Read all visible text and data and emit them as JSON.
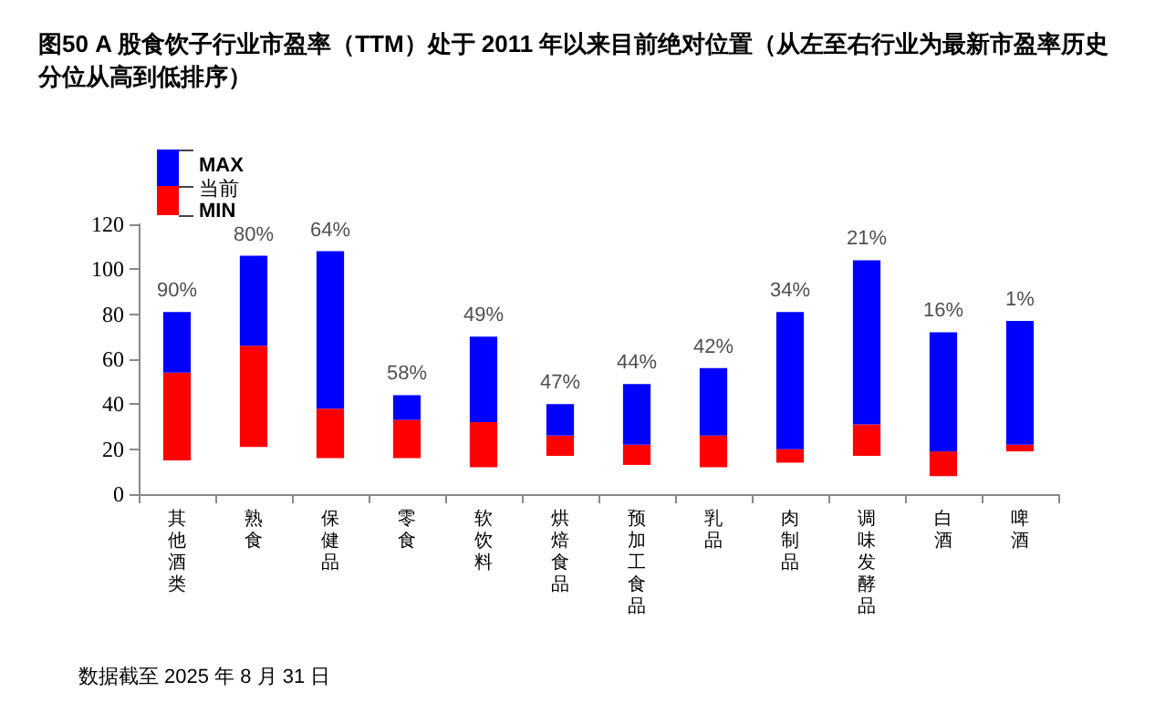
{
  "chart_data": {
    "type": "bar",
    "title": "图50 A 股食饮子行业市盈率（TTM）处于 2011 年以来目前绝对位置（从左至右行业为最新市盈率历史分位从高到低排序）",
    "categories": [
      "其他酒类",
      "熟食",
      "保健品",
      "零食",
      "软饮料",
      "烘焙食品",
      "预加工食品",
      "乳品",
      "肉制品",
      "调味发酵品",
      "白酒",
      "啤酒"
    ],
    "series": [
      {
        "name": "MIN",
        "color": "#ff0000",
        "base": [
          15,
          21,
          16,
          16,
          12,
          17,
          13,
          12,
          14,
          17,
          8,
          19
        ],
        "values": [
          39,
          45,
          22,
          17,
          20,
          9,
          9,
          14,
          6,
          14,
          11,
          3
        ]
      },
      {
        "name": "MAX",
        "color": "#0000ff",
        "base": [
          54,
          66,
          38,
          33,
          32,
          26,
          22,
          26,
          20,
          31,
          19,
          22
        ],
        "values": [
          27,
          40,
          70,
          11,
          38,
          14,
          27,
          30,
          61,
          73,
          53,
          55
        ]
      }
    ],
    "ylim": [
      0,
      120
    ],
    "yticks": [
      0,
      20,
      40,
      60,
      80,
      100,
      120
    ],
    "grid": false,
    "legend": "top left",
    "annotations": [
      "当前",
      {
        "text": "90%",
        "x": "其他酒类",
        "y": 81
      },
      {
        "text": "80%",
        "x": "熟食",
        "y": 106
      },
      {
        "text": "64%",
        "x": "保健品",
        "y": 108
      },
      {
        "text": "58%",
        "x": "零食",
        "y": 44
      },
      {
        "text": "49%",
        "x": "软饮料",
        "y": 70
      },
      {
        "text": "47%",
        "x": "烘焙食品",
        "y": 40
      },
      {
        "text": "44%",
        "x": "预加工食品",
        "y": 49
      },
      {
        "text": "42%",
        "x": "乳品",
        "y": 56
      },
      {
        "text": "34%",
        "x": "肉制品",
        "y": 81
      },
      {
        "text": "21%",
        "x": "调味发酵品",
        "y": 104
      },
      {
        "text": "16%",
        "x": "白酒",
        "y": 72
      },
      {
        "text": "1%",
        "x": "啤酒",
        "y": 77
      },
      "数据截至 2025 年 8 月 31 日"
    ]
  }
}
